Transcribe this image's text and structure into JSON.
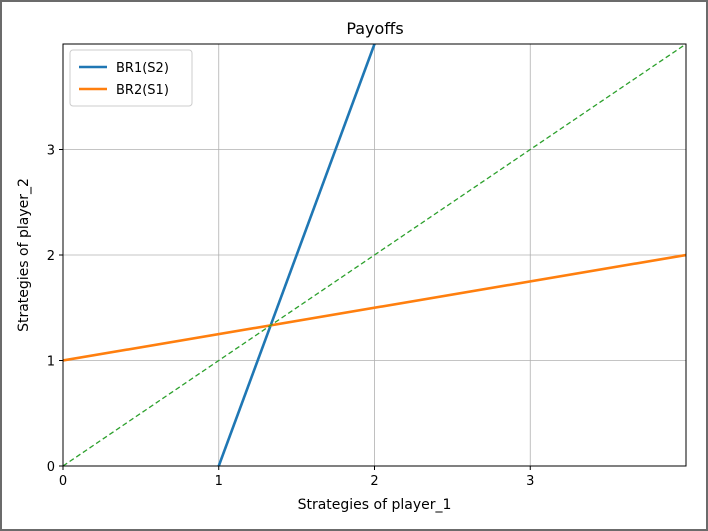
{
  "chart_data": {
    "type": "line",
    "title": "Payoffs",
    "xlabel": "Strategies of player_1",
    "ylabel": "Strategies of player_2",
    "xlim": [
      0,
      4
    ],
    "ylim": [
      0,
      4
    ],
    "xticks": [
      0,
      1,
      2,
      3
    ],
    "yticks": [
      0,
      1,
      2,
      3
    ],
    "grid": true,
    "legend_position": "top-left",
    "series": [
      {
        "name": "BR1(S2)",
        "color": "#1f77b4",
        "style": "solid",
        "x": [
          1,
          2
        ],
        "y": [
          0,
          4
        ]
      },
      {
        "name": "BR2(S1)",
        "color": "#ff7f0e",
        "style": "solid",
        "x": [
          0,
          4
        ],
        "y": [
          1,
          2
        ]
      },
      {
        "name": "",
        "color": "#2ca02c",
        "style": "dashed",
        "x": [
          0,
          4
        ],
        "y": [
          0,
          4
        ]
      }
    ]
  }
}
